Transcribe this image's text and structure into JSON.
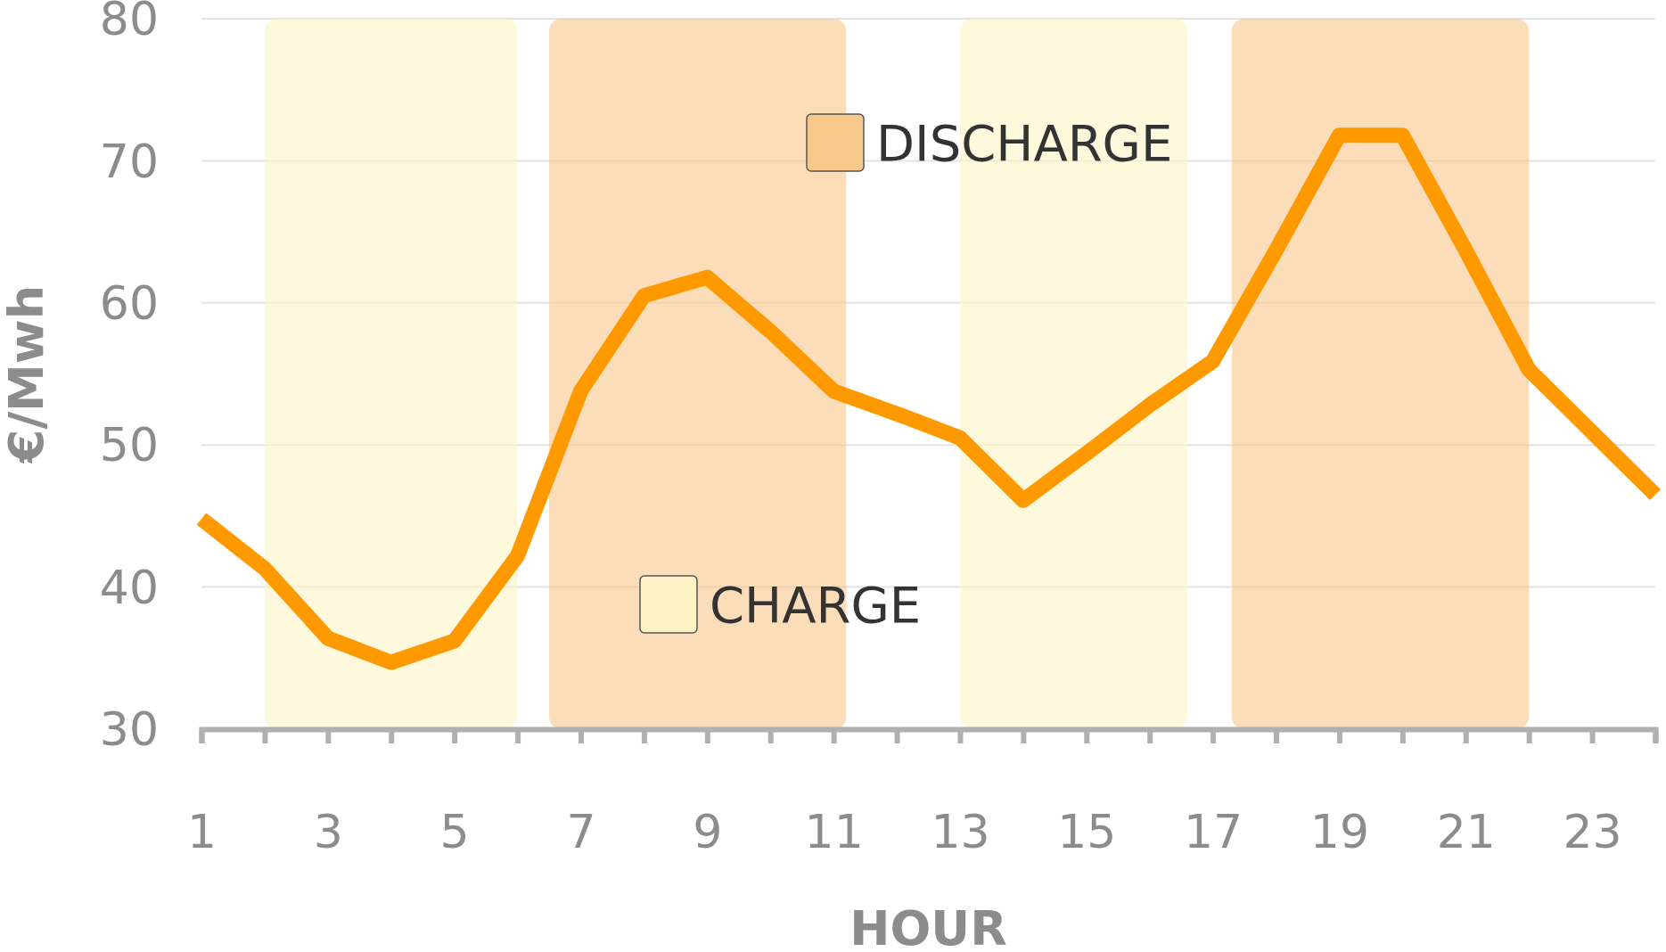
{
  "chart_data": {
    "type": "line",
    "xlabel": "HOUR",
    "ylabel": "€/Mwh",
    "x": [
      1,
      2,
      3,
      4,
      5,
      6,
      7,
      8,
      9,
      10,
      11,
      12,
      13,
      14,
      15,
      16,
      17,
      18,
      19,
      20,
      21,
      22,
      23,
      24
    ],
    "series": [
      {
        "color": "#ff9900",
        "values": [
          44.8,
          41.3,
          36.4,
          34.7,
          36.2,
          42.2,
          53.8,
          60.5,
          61.8,
          58,
          53.8,
          52.2,
          50.5,
          46.1,
          49.4,
          52.8,
          55.9,
          63.7,
          71.8,
          71.8,
          63.7,
          55.3,
          50.9,
          46.5
        ]
      }
    ],
    "xlim": [
      1,
      24
    ],
    "xticks": [
      1,
      {
        "value": 2,
        "label": null
      },
      3,
      {
        "value": 4,
        "label": null
      },
      5,
      {
        "value": 6,
        "label": null
      },
      7,
      {
        "value": 8,
        "label": null
      },
      9,
      {
        "value": 10,
        "label": null
      },
      11,
      {
        "value": 12,
        "label": null
      },
      13,
      {
        "value": 14,
        "label": null
      },
      15,
      {
        "value": 16,
        "label": null
      },
      17,
      {
        "value": 18,
        "label": null
      },
      19,
      {
        "value": 20,
        "label": null
      },
      21,
      {
        "value": 22,
        "label": null
      },
      23,
      {
        "value": 24,
        "label": null
      }
    ],
    "ylim": [
      30,
      80
    ],
    "yticks": [
      30,
      40,
      50,
      60,
      70,
      80
    ],
    "grid": "y",
    "marker": "none",
    "line_style": "solid",
    "annotations": [
      "CHARGE",
      "DISCHARGE"
    ],
    "bands": [
      {
        "axis": "x",
        "from": 2,
        "to": 6,
        "color": "#fdf3c4"
      },
      {
        "axis": "x",
        "from": 6.5,
        "to": 11.2,
        "color": "#f8c88a"
      },
      {
        "axis": "x",
        "from": 13,
        "to": 16.6,
        "color": "#fdf3c4"
      },
      {
        "axis": "x",
        "from": 17.3,
        "to": 22,
        "color": "#f8c88a"
      }
    ]
  }
}
